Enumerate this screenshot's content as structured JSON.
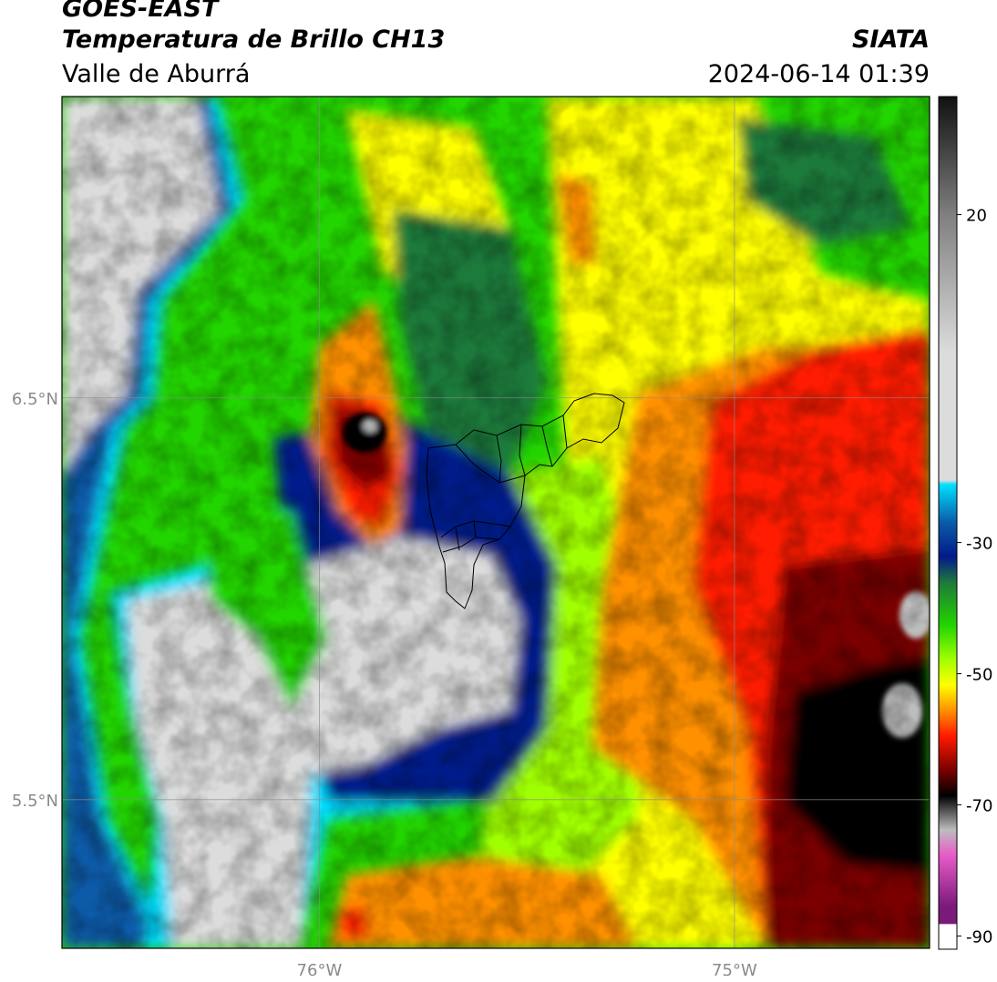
{
  "header": {
    "satellite": "GOES-EAST",
    "product": "Temperatura de Brillo CH13",
    "region": "Valle de Aburrá",
    "organization": "SIATA",
    "datetime": "2024-06-14 01:39"
  },
  "map": {
    "lon_range": [
      -76.62,
      -74.53
    ],
    "lat_range": [
      5.13,
      7.25
    ],
    "lat_ticks": [
      {
        "value": 6.5,
        "label": "6.5°N"
      },
      {
        "value": 5.5,
        "label": "5.5°N"
      }
    ],
    "lon_ticks": [
      {
        "value": -76.0,
        "label": "76°W"
      },
      {
        "value": -75.0,
        "label": "75°W"
      }
    ],
    "gridlines": true,
    "overlay": "municipality-boundaries"
  },
  "colorbar": {
    "range": [
      -92,
      38
    ],
    "ticks": [
      {
        "value": 20,
        "label": "20"
      },
      {
        "value": -30,
        "label": "-30"
      },
      {
        "value": -50,
        "label": "-50"
      },
      {
        "value": -70,
        "label": "-70"
      },
      {
        "value": -90,
        "label": "-90"
      }
    ],
    "colors": {
      "warm_black": "#111111",
      "warm_gray": "#808080",
      "light_gray": "#dcdcdc",
      "cyan": "#00e0ff",
      "blue": "#0a5aa8",
      "dark_blue": "#021a8a",
      "dark_green": "#1f7a3a",
      "green": "#22d400",
      "lime": "#a0ff00",
      "yellow": "#ffff00",
      "orange": "#ff9000",
      "red": "#ff1a00",
      "dark_red": "#7a0000",
      "cold_black": "#000000",
      "cold_gray": "#bdbdbd",
      "pink": "#e85ac8",
      "purple": "#7a1a7a"
    }
  }
}
